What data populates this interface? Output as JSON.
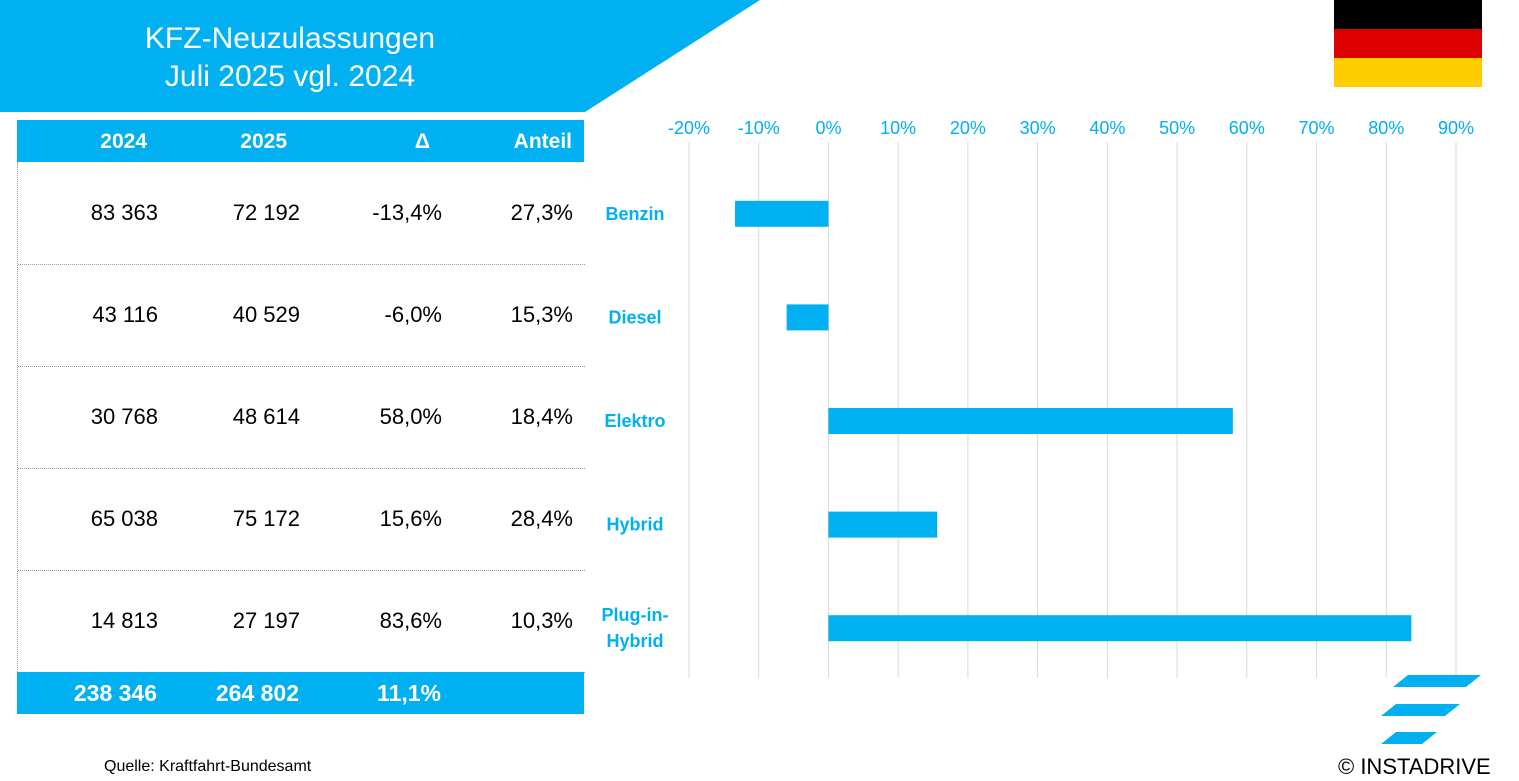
{
  "header": {
    "title_line1": "KFZ-Neuzulassungen",
    "title_line2": "Juli 2025 vgl. 2024",
    "accent_color": "#00b0f0"
  },
  "flag": {
    "colors": [
      "#000000",
      "#dd0000",
      "#ffce00"
    ]
  },
  "table": {
    "headers": [
      "2024",
      "2025",
      "Δ",
      "Anteil"
    ],
    "rows": [
      {
        "v2024": "83 363",
        "v2025": "72 192",
        "delta": "-13,4%",
        "share": "27,3%"
      },
      {
        "v2024": "43 116",
        "v2025": "40 529",
        "delta": "-6,0%",
        "share": "15,3%"
      },
      {
        "v2024": "30 768",
        "v2025": "48 614",
        "delta": "58,0%",
        "share": "18,4%"
      },
      {
        "v2024": "65 038",
        "v2025": "75 172",
        "delta": "15,6%",
        "share": "28,4%"
      },
      {
        "v2024": "14 813",
        "v2025": "27 197",
        "delta": "83,6%",
        "share": "10,3%"
      }
    ],
    "total": {
      "v2024": "238 346",
      "v2025": "264 802",
      "delta": "11,1%"
    }
  },
  "chart_data": {
    "type": "bar",
    "orientation": "horizontal",
    "categories": [
      [
        "Benzin"
      ],
      [
        "Diesel"
      ],
      [
        "Elektro"
      ],
      [
        "Hybrid"
      ],
      [
        "Plug-in-",
        "Hybrid"
      ]
    ],
    "values": [
      -13.4,
      -6.0,
      58.0,
      15.6,
      83.6
    ],
    "xlim": [
      -20,
      90
    ],
    "ticks": [
      -20,
      -10,
      0,
      10,
      20,
      30,
      40,
      50,
      60,
      70,
      80,
      90
    ],
    "tick_labels": [
      "-20%",
      "-10%",
      "0%",
      "10%",
      "20%",
      "30%",
      "40%",
      "50%",
      "60%",
      "70%",
      "80%",
      "90%"
    ],
    "axis_position": "top",
    "grid": true,
    "bar_color": "#00b0f0",
    "label_color": "#00b0f0",
    "grid_color": "#d9d9d9"
  },
  "footer": {
    "source": "Quelle: Kraftfahrt-Bundesamt",
    "copyright": "© INSTADRIVE"
  }
}
